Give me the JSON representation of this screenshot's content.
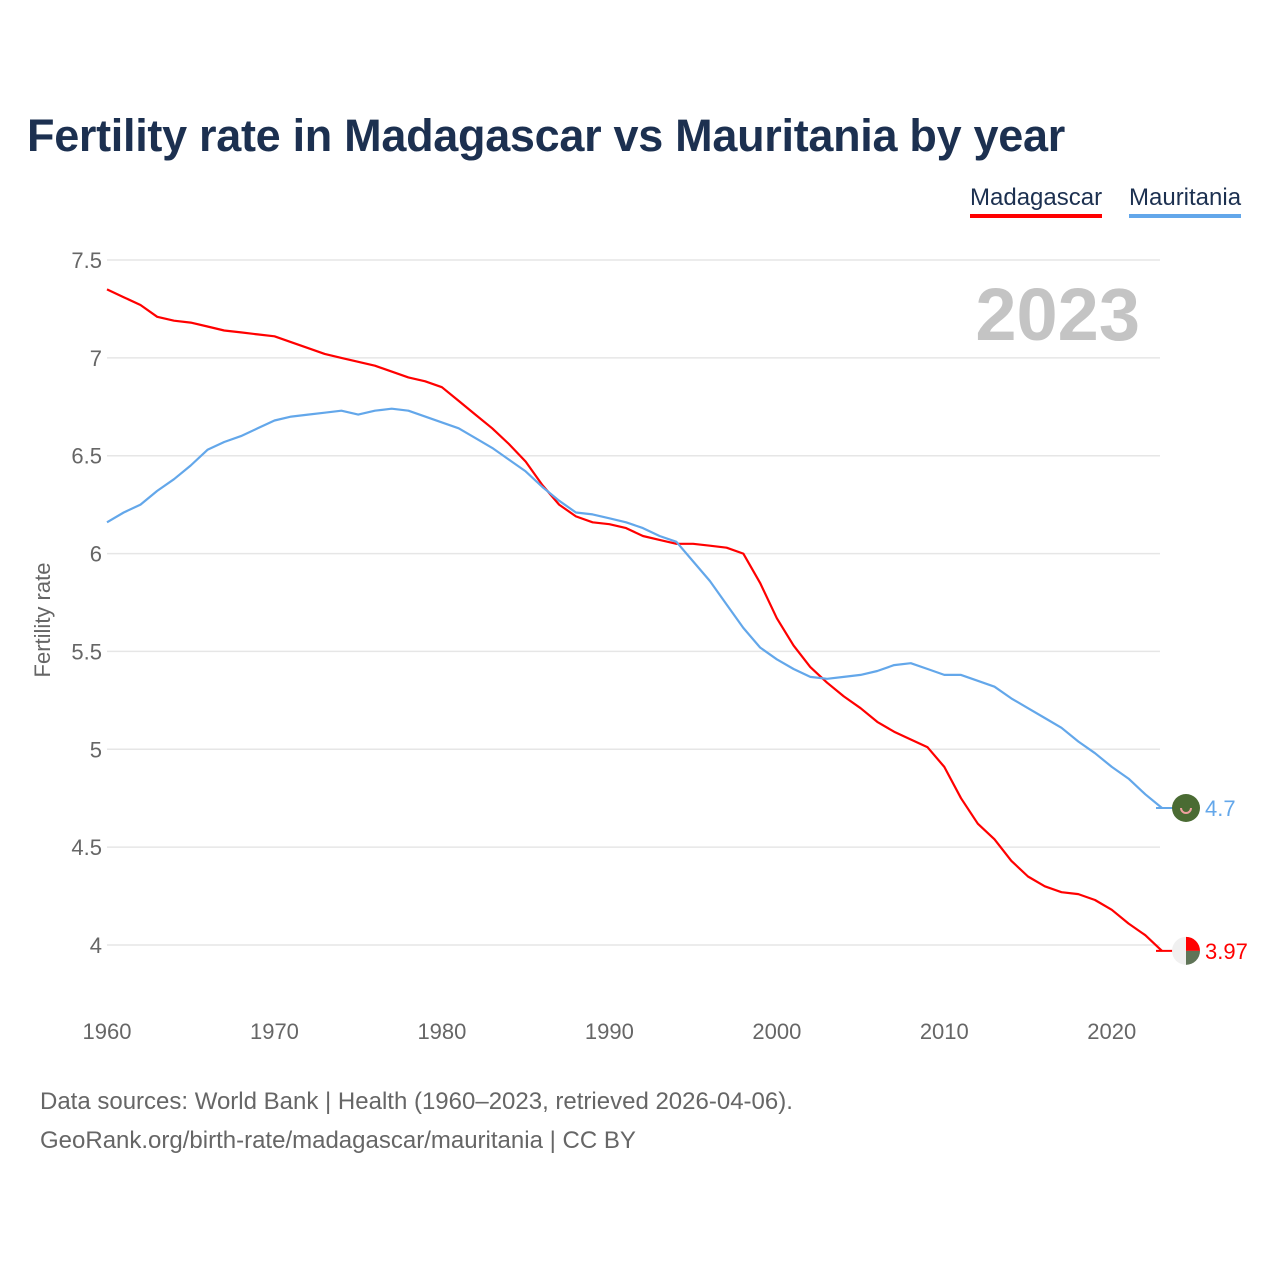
{
  "chart_data": {
    "type": "line",
    "title": "Fertility rate in Madagascar vs Mauritania by year",
    "xlabel": "",
    "ylabel": "Fertility rate",
    "xlim": [
      1960,
      2023
    ],
    "ylim": [
      4,
      7.5
    ],
    "grid": true,
    "legend_position": "top-right",
    "year_watermark": "2023",
    "x_ticks": [
      "1960",
      "1970",
      "1980",
      "1990",
      "2000",
      "2010",
      "2020"
    ],
    "y_ticks": [
      "4",
      "4.5",
      "5",
      "5.5",
      "6",
      "6.5",
      "7",
      "7.5"
    ],
    "x": [
      1960,
      1961,
      1962,
      1963,
      1964,
      1965,
      1966,
      1967,
      1968,
      1969,
      1970,
      1971,
      1972,
      1973,
      1974,
      1975,
      1976,
      1977,
      1978,
      1979,
      1980,
      1981,
      1982,
      1983,
      1984,
      1985,
      1986,
      1987,
      1988,
      1989,
      1990,
      1991,
      1992,
      1993,
      1994,
      1995,
      1996,
      1997,
      1998,
      1999,
      2000,
      2001,
      2002,
      2003,
      2004,
      2005,
      2006,
      2007,
      2008,
      2009,
      2010,
      2011,
      2012,
      2013,
      2014,
      2015,
      2016,
      2017,
      2018,
      2019,
      2020,
      2021,
      2022,
      2023
    ],
    "series": [
      {
        "name": "Madagascar",
        "color": "#ff0000",
        "end_label": "3.97",
        "values": [
          7.35,
          7.31,
          7.27,
          7.21,
          7.19,
          7.18,
          7.16,
          7.14,
          7.13,
          7.12,
          7.11,
          7.08,
          7.05,
          7.02,
          7.0,
          6.98,
          6.96,
          6.93,
          6.9,
          6.88,
          6.85,
          6.78,
          6.71,
          6.64,
          6.56,
          6.47,
          6.35,
          6.25,
          6.19,
          6.16,
          6.15,
          6.13,
          6.09,
          6.07,
          6.05,
          6.05,
          6.04,
          6.03,
          6.0,
          5.85,
          5.67,
          5.53,
          5.42,
          5.34,
          5.27,
          5.21,
          5.14,
          5.09,
          5.05,
          5.01,
          4.91,
          4.75,
          4.62,
          4.54,
          4.43,
          4.35,
          4.3,
          4.27,
          4.26,
          4.23,
          4.18,
          4.11,
          4.05,
          3.97
        ]
      },
      {
        "name": "Mauritania",
        "color": "#63a7ea",
        "end_label": "4.7",
        "values": [
          6.16,
          6.21,
          6.25,
          6.32,
          6.38,
          6.45,
          6.53,
          6.57,
          6.6,
          6.64,
          6.68,
          6.7,
          6.71,
          6.72,
          6.73,
          6.71,
          6.73,
          6.74,
          6.73,
          6.7,
          6.67,
          6.64,
          6.59,
          6.54,
          6.48,
          6.42,
          6.34,
          6.27,
          6.21,
          6.2,
          6.18,
          6.16,
          6.13,
          6.09,
          6.06,
          5.96,
          5.86,
          5.74,
          5.62,
          5.52,
          5.46,
          5.41,
          5.37,
          5.36,
          5.37,
          5.38,
          5.4,
          5.43,
          5.44,
          5.41,
          5.38,
          5.38,
          5.35,
          5.32,
          5.26,
          5.21,
          5.16,
          5.11,
          5.04,
          4.98,
          4.91,
          4.85,
          4.77,
          4.7
        ]
      }
    ]
  },
  "footer": {
    "sources": "Data sources: World Bank | Health (1960–2023, retrieved 2026-04-06).",
    "link": "GeoRank.org/birth-rate/madagascar/mauritania | CC BY"
  }
}
